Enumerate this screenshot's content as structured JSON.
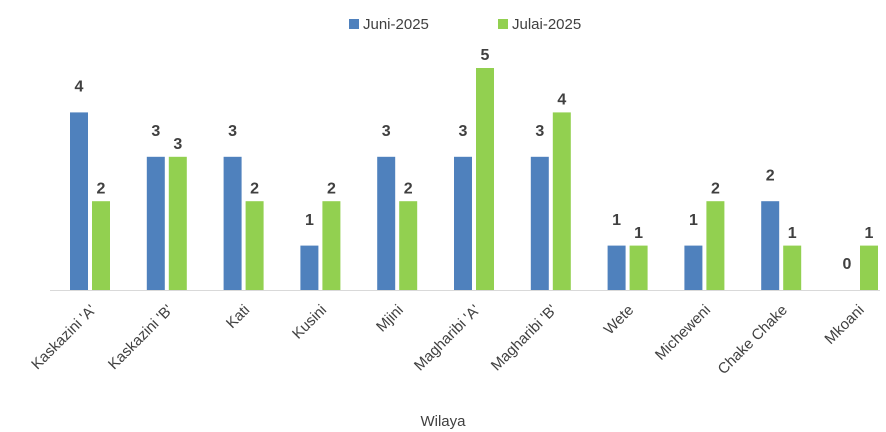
{
  "chart_data": {
    "type": "bar",
    "x_label": "Wilaya",
    "categories": [
      "Kaskazini 'A'",
      "Kaskazini 'B'",
      "Kati",
      "Kusini",
      "Mjini",
      "Magharibi 'A'",
      "Magharibi 'B'",
      "Wete",
      "Micheweni",
      "Chake Chake",
      "Mkoani"
    ],
    "series": [
      {
        "name": "Juni-2025",
        "color": "#4f81bd",
        "values": [
          4,
          3,
          3,
          1,
          3,
          3,
          3,
          1,
          1,
          2,
          0
        ]
      },
      {
        "name": "Julai-2025",
        "color": "#92d050",
        "values": [
          2,
          3,
          2,
          2,
          2,
          5,
          4,
          1,
          2,
          1,
          1
        ]
      }
    ],
    "ylim": [
      0,
      5
    ],
    "legend": "top"
  }
}
